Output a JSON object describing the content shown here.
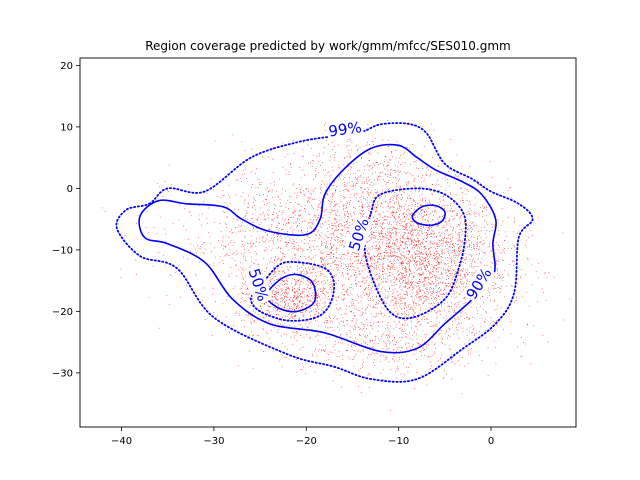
{
  "chart_data": {
    "type": "scatter",
    "title": "Region coverage predicted by work/gmm/mfcc/SES010.gmm",
    "xlabel": "",
    "ylabel": "",
    "xlim": [
      -44.5,
      9.2
    ],
    "ylim": [
      -38.8,
      21.2
    ],
    "xticks": [
      -40,
      -30,
      -20,
      -10,
      0
    ],
    "yticks": [
      20,
      10,
      0,
      -10,
      -20,
      -30
    ],
    "grid": false,
    "legend": "none",
    "colors": {
      "points": "#ff0000",
      "contours": "#0000ff",
      "axes": "#000000"
    },
    "point_clusters": [
      {
        "center": [
          -8,
          -12
        ],
        "spread": [
          5,
          6
        ],
        "count": 2600
      },
      {
        "center": [
          -22,
          -18
        ],
        "spread": [
          2.8,
          2.5
        ],
        "count": 700
      },
      {
        "center": [
          -18,
          -8
        ],
        "spread": [
          8,
          5.5
        ],
        "count": 1700
      },
      {
        "center": [
          -13,
          2
        ],
        "spread": [
          4.5,
          3.5
        ],
        "count": 400
      },
      {
        "center": [
          -12,
          -25
        ],
        "spread": [
          6,
          3
        ],
        "count": 500
      }
    ],
    "contours": [
      {
        "label": "99%",
        "style": "dotted",
        "label_at": [
          -15.8,
          9.6
        ],
        "label_rotation": -8,
        "points": [
          [
            -37,
            -2.5
          ],
          [
            -35,
            0
          ],
          [
            -31,
            -0.5
          ],
          [
            -26,
            5
          ],
          [
            -21,
            7.5
          ],
          [
            -17,
            8.5
          ],
          [
            -14,
            9.2
          ],
          [
            -12,
            10.4
          ],
          [
            -9,
            10.5
          ],
          [
            -7,
            9
          ],
          [
            -5,
            4
          ],
          [
            -2,
            1.5
          ],
          [
            0,
            -0.5
          ],
          [
            3,
            -2.5
          ],
          [
            4.5,
            -5
          ],
          [
            3,
            -8
          ],
          [
            2.5,
            -17
          ],
          [
            0.5,
            -22
          ],
          [
            -3,
            -26
          ],
          [
            -8,
            -31
          ],
          [
            -13,
            -31
          ],
          [
            -17,
            -29
          ],
          [
            -22,
            -27
          ],
          [
            -30,
            -21
          ],
          [
            -34,
            -13
          ],
          [
            -38,
            -11
          ],
          [
            -40.5,
            -6.5
          ],
          [
            -39.5,
            -3.5
          ]
        ]
      },
      {
        "label": "90%",
        "style": "solid",
        "label_at": [
          -1.3,
          -15.5
        ],
        "label_rotation": -58,
        "points": [
          [
            -38,
            -4.5
          ],
          [
            -36,
            -2
          ],
          [
            -33,
            -2.5
          ],
          [
            -29,
            -3
          ],
          [
            -27,
            -5
          ],
          [
            -24,
            -7
          ],
          [
            -20,
            -7.5
          ],
          [
            -18.5,
            -5
          ],
          [
            -18,
            -1
          ],
          [
            -16,
            3
          ],
          [
            -13,
            6.5
          ],
          [
            -10,
            7
          ],
          [
            -8,
            5
          ],
          [
            -6,
            3
          ],
          [
            -3,
            1
          ],
          [
            -1,
            -1
          ],
          [
            0.5,
            -5
          ],
          [
            0.2,
            -9
          ],
          [
            0.3,
            -14
          ],
          [
            -2,
            -18
          ],
          [
            -5,
            -22
          ],
          [
            -8,
            -26
          ],
          [
            -12,
            -26.5
          ],
          [
            -18,
            -23.5
          ],
          [
            -24,
            -22
          ],
          [
            -28,
            -18
          ],
          [
            -31,
            -12
          ],
          [
            -35,
            -9
          ],
          [
            -37.5,
            -8
          ]
        ]
      },
      {
        "label": "50%",
        "style": "dotted",
        "label_at": [
          -14.3,
          -7.5
        ],
        "label_rotation": -72,
        "points": [
          [
            -13,
            -4
          ],
          [
            -12,
            -1
          ],
          [
            -8,
            0
          ],
          [
            -5,
            -1
          ],
          [
            -3,
            -4
          ],
          [
            -2.8,
            -8
          ],
          [
            -3.5,
            -13
          ],
          [
            -5,
            -18
          ],
          [
            -8.5,
            -21
          ],
          [
            -11,
            -20
          ],
          [
            -13,
            -14
          ],
          [
            -13.7,
            -9
          ]
        ]
      },
      {
        "label": "50%",
        "style": "dotted",
        "label_at": [
          -25.2,
          -15.7
        ],
        "label_rotation": 72,
        "points": [
          [
            -25,
            -16
          ],
          [
            -23,
            -12.5
          ],
          [
            -21,
            -12
          ],
          [
            -18,
            -13
          ],
          [
            -17,
            -15.5
          ],
          [
            -17.5,
            -19
          ],
          [
            -19,
            -21
          ],
          [
            -22,
            -21.5
          ],
          [
            -25,
            -20
          ],
          [
            -26,
            -18
          ]
        ]
      },
      {
        "label": "",
        "style": "solid",
        "points": [
          [
            -24,
            -16.5
          ],
          [
            -22.5,
            -14.5
          ],
          [
            -21,
            -14
          ],
          [
            -19.5,
            -15
          ],
          [
            -19,
            -17
          ],
          [
            -19.3,
            -18.8
          ],
          [
            -21,
            -20
          ],
          [
            -22.8,
            -19.6
          ],
          [
            -24.2,
            -18
          ]
        ]
      },
      {
        "label": "",
        "style": "solid",
        "points": [
          [
            -8.5,
            -4.5
          ],
          [
            -7.5,
            -3
          ],
          [
            -6,
            -2.8
          ],
          [
            -5,
            -3.8
          ],
          [
            -5.3,
            -5.3
          ],
          [
            -6.5,
            -6
          ],
          [
            -8,
            -5.6
          ]
        ]
      }
    ]
  }
}
